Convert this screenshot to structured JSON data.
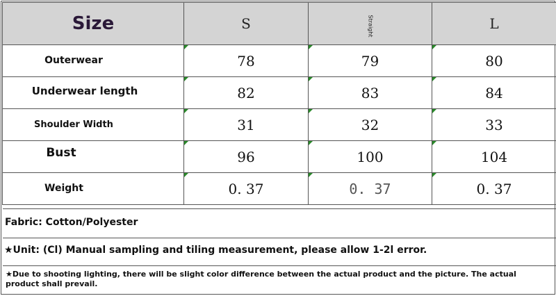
{
  "header": {
    "size_label": "Size",
    "columns": [
      "S",
      "Straight",
      "L"
    ]
  },
  "rows": [
    {
      "label": "Outerwear",
      "values": [
        "78",
        "79",
        "80"
      ]
    },
    {
      "label": "Underwear length",
      "values": [
        "82",
        "83",
        "84"
      ]
    },
    {
      "label": "Shoulder Width",
      "values": [
        "31",
        "32",
        "33"
      ]
    },
    {
      "label": "Bust",
      "values": [
        "96",
        "100",
        "104"
      ]
    },
    {
      "label": "Weight",
      "values": [
        "0. 37",
        "0. 37",
        "0. 37"
      ]
    }
  ],
  "notes": {
    "fabric": "Fabric: Cotton/Polyester",
    "unit": "★Unit: (Cl) Manual sampling and tiling measurement, please allow 1-2l error.",
    "lighting": "★Due to shooting lighting, there will be slight color difference between the actual product and the picture. The actual product shall prevail."
  },
  "colors": {
    "header_bg": "#d4d4d4",
    "size_text": "#2a1838",
    "corner_mark": "#2a8a2a"
  }
}
